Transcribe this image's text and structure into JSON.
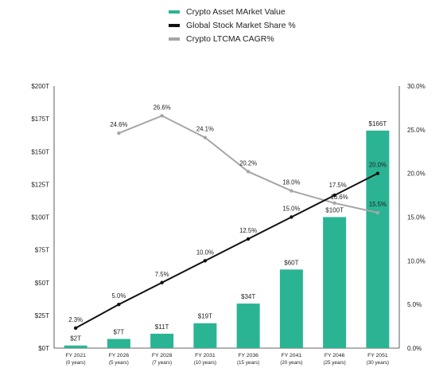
{
  "chart_data": {
    "type": "bar",
    "categories": [
      "FY 2021",
      "FY 2026",
      "FY 2028",
      "FY 2031",
      "FY 2036",
      "FY 2041",
      "FY 2046",
      "FY 2051"
    ],
    "category_sublabels": [
      "(0 years)",
      "(5 years)",
      "(7 years)",
      "(10 years)",
      "(15 years)",
      "(20 years)",
      "(25 years)",
      "(30 years)"
    ],
    "series": [
      {
        "name": "Crypto Asset MArket Value",
        "type": "bar",
        "axis": "left",
        "color": "#2bb493",
        "values": [
          2,
          7,
          11,
          19,
          34,
          60,
          100,
          166
        ],
        "labels": [
          "$2T",
          "$7T",
          "$11T",
          "$19T",
          "$34T",
          "$60T",
          "$100T",
          "$166T"
        ]
      },
      {
        "name": "Global Stock Market Share %",
        "type": "line",
        "axis": "right",
        "color": "#111111",
        "values": [
          2.3,
          5.0,
          7.5,
          10.0,
          12.5,
          15.0,
          17.5,
          20.0
        ],
        "labels": [
          "2.3%",
          "5.0%",
          "7.5%",
          "10.0%",
          "12.5%",
          "15.0%",
          "17.5%",
          "20.0%"
        ]
      },
      {
        "name": "Crypto LTCMA CAGR%",
        "type": "line",
        "axis": "right",
        "color": "#a6a6a6",
        "values": [
          null,
          24.6,
          26.6,
          24.1,
          20.2,
          18.0,
          16.6,
          15.5
        ],
        "labels": [
          "",
          "24.6%",
          "26.6%",
          "24.1%",
          "20.2%",
          "18.0%",
          "16.6%",
          "15.5%"
        ]
      }
    ],
    "y_left": {
      "range": [
        0,
        200
      ],
      "ticks": [
        0,
        25,
        50,
        75,
        100,
        125,
        150,
        175,
        200
      ],
      "tick_labels": [
        "$0T",
        "$25T",
        "$50T",
        "$75T",
        "$100T",
        "$125T",
        "$150T",
        "$175T",
        "$200T"
      ]
    },
    "y_right": {
      "range": [
        0,
        30
      ],
      "ticks": [
        0,
        5,
        10,
        15,
        20,
        25,
        30
      ],
      "tick_labels": [
        "0.0%",
        "5.0%",
        "10.0%",
        "15.0%",
        "20.0%",
        "25.0%",
        "30.0%"
      ]
    },
    "grid": false,
    "legend_position": "top-center"
  }
}
